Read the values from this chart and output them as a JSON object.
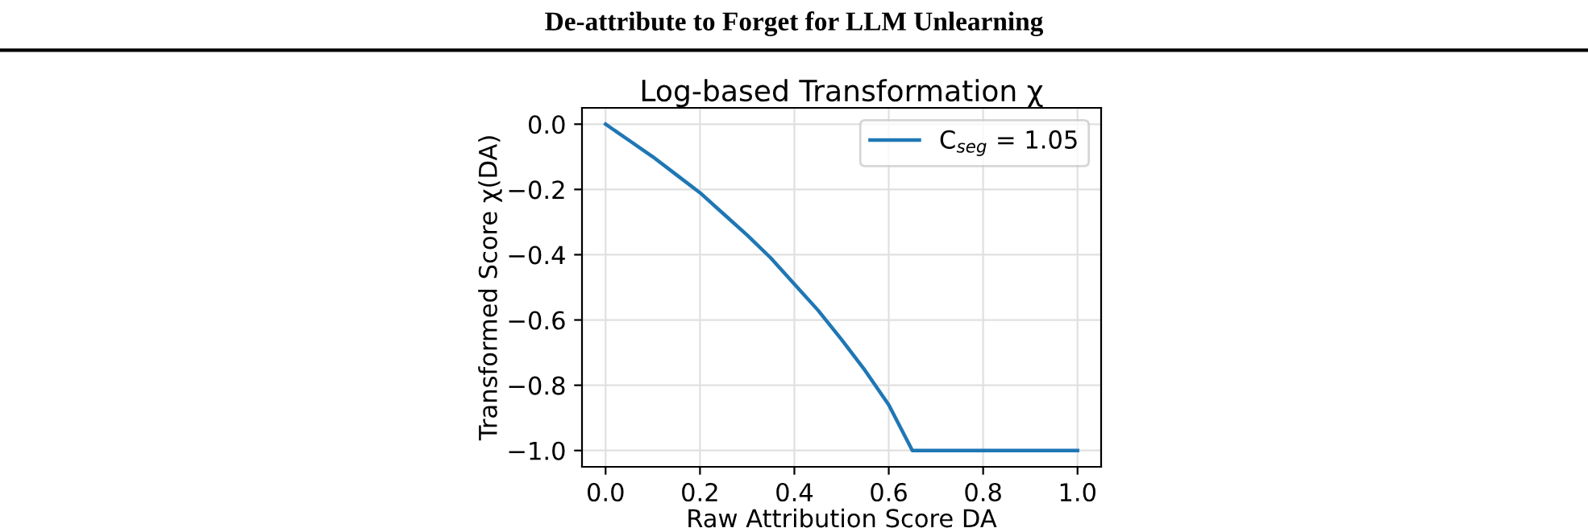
{
  "chart_data": {
    "type": "line",
    "title": "Log-based Transformation χ",
    "xlabel": "Raw Attribution Score DA",
    "ylabel": "Transformed Score χ(DA)",
    "annotations": [
      "De-attribute to Forget for LLM Unlearning"
    ],
    "series": [
      {
        "name": "C$_{seg}$ = 1.05",
        "color": "#1f77b4",
        "x": [
          0.0,
          0.05,
          0.1,
          0.15,
          0.2,
          0.25,
          0.3,
          0.35,
          0.4,
          0.45,
          0.5,
          0.55,
          0.6,
          0.65,
          0.7,
          0.8,
          0.9,
          1.0
        ],
        "values": [
          0.0,
          -0.05,
          -0.1,
          -0.155,
          -0.21,
          -0.275,
          -0.34,
          -0.41,
          -0.49,
          -0.57,
          -0.66,
          -0.755,
          -0.86,
          -1.0,
          -1.0,
          -1.0,
          -1.0,
          -1.0
        ]
      }
    ],
    "xlim": [
      -0.05,
      1.05
    ],
    "ylim": [
      -1.05,
      0.05
    ],
    "xticks": [
      {
        "value": 0.0,
        "label": "0.0"
      },
      0.2,
      0.4,
      0.6,
      0.8,
      {
        "value": 1.0,
        "label": "1.0"
      }
    ],
    "yticks": [
      {
        "value": 0.0,
        "label": "0.0"
      },
      {
        "value": -0.2,
        "label": "−0.2"
      },
      {
        "value": -0.4,
        "label": "−0.4"
      },
      {
        "value": -0.6,
        "label": "−0.6"
      },
      {
        "value": -0.8,
        "label": "−0.8"
      },
      {
        "value": -1.0,
        "label": "−1.0"
      }
    ],
    "grid": true,
    "legend": "top right",
    "marker": "none",
    "line_style": "solid"
  }
}
